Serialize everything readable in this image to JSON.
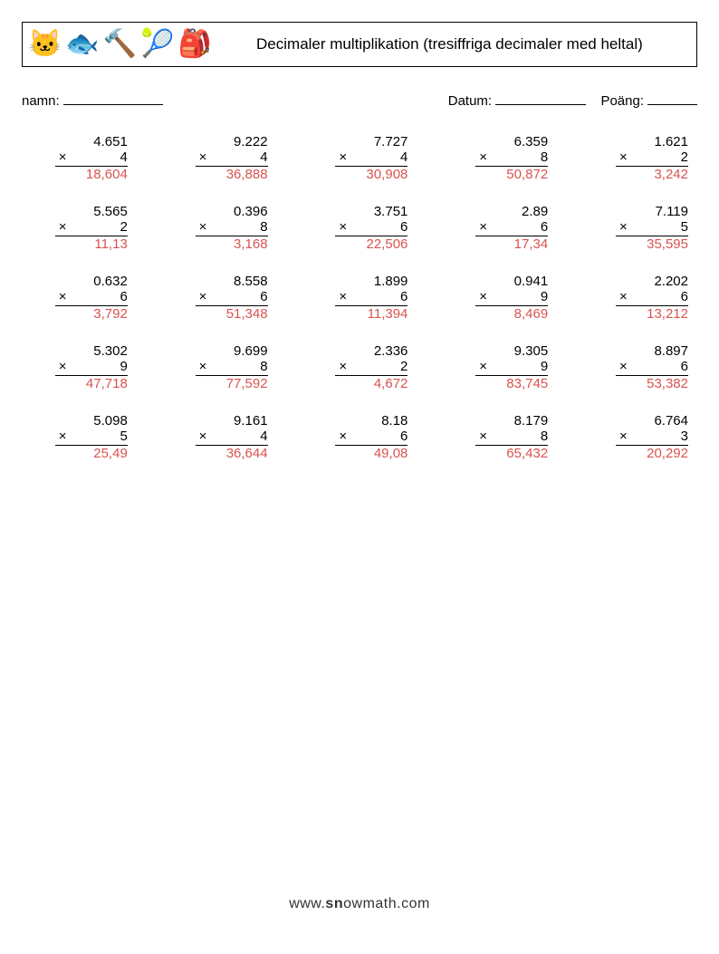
{
  "header": {
    "title": "Decimaler multiplikation (tresiffriga decimaler med heltal)",
    "icons": [
      "🐱",
      "🐟",
      "🔨",
      "🎾",
      "🎒"
    ]
  },
  "meta": {
    "name_label": "namn:",
    "date_label": "Datum:",
    "score_label": "Poäng:"
  },
  "operator": "×",
  "problems": [
    {
      "a": "4.651",
      "b": "4",
      "ans": "18,604"
    },
    {
      "a": "9.222",
      "b": "4",
      "ans": "36,888"
    },
    {
      "a": "7.727",
      "b": "4",
      "ans": "30,908"
    },
    {
      "a": "6.359",
      "b": "8",
      "ans": "50,872"
    },
    {
      "a": "1.621",
      "b": "2",
      "ans": "3,242"
    },
    {
      "a": "5.565",
      "b": "2",
      "ans": "11,13"
    },
    {
      "a": "0.396",
      "b": "8",
      "ans": "3,168"
    },
    {
      "a": "3.751",
      "b": "6",
      "ans": "22,506"
    },
    {
      "a": "2.89",
      "b": "6",
      "ans": "17,34"
    },
    {
      "a": "7.119",
      "b": "5",
      "ans": "35,595"
    },
    {
      "a": "0.632",
      "b": "6",
      "ans": "3,792"
    },
    {
      "a": "8.558",
      "b": "6",
      "ans": "51,348"
    },
    {
      "a": "1.899",
      "b": "6",
      "ans": "11,394"
    },
    {
      "a": "0.941",
      "b": "9",
      "ans": "8,469"
    },
    {
      "a": "2.202",
      "b": "6",
      "ans": "13,212"
    },
    {
      "a": "5.302",
      "b": "9",
      "ans": "47,718"
    },
    {
      "a": "9.699",
      "b": "8",
      "ans": "77,592"
    },
    {
      "a": "2.336",
      "b": "2",
      "ans": "4,672"
    },
    {
      "a": "9.305",
      "b": "9",
      "ans": "83,745"
    },
    {
      "a": "8.897",
      "b": "6",
      "ans": "53,382"
    },
    {
      "a": "5.098",
      "b": "5",
      "ans": "25,49"
    },
    {
      "a": "9.161",
      "b": "4",
      "ans": "36,644"
    },
    {
      "a": "8.18",
      "b": "6",
      "ans": "49,08"
    },
    {
      "a": "8.179",
      "b": "8",
      "ans": "65,432"
    },
    {
      "a": "6.764",
      "b": "3",
      "ans": "20,292"
    }
  ],
  "footer": {
    "prefix": "www.",
    "brand_s": "s",
    "brand_n": "n",
    "brand_rest": "owmath",
    "suffix": ".com"
  },
  "colors": {
    "answer": "#d9534f",
    "text": "#000000",
    "background": "#ffffff"
  }
}
